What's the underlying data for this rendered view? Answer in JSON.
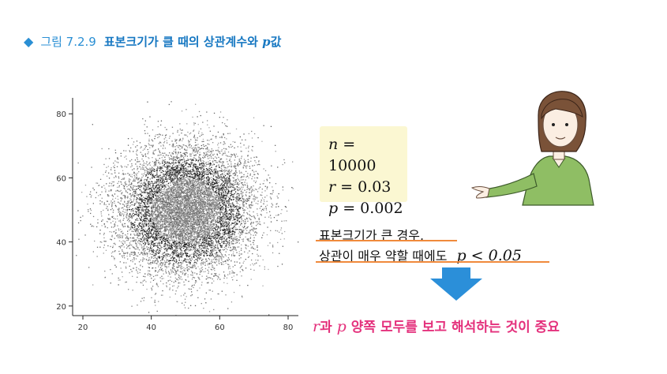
{
  "caption": {
    "label": "그림 7.2.9",
    "title_prefix": "표본크기가 클 때의 상관계수와 ",
    "title_p": "p",
    "title_suffix": "값"
  },
  "stats": {
    "n_label": "n",
    "n_value": " = 10000",
    "r_label": "r",
    "r_value": " = 0.03",
    "p_label": "p",
    "p_value": " = 0.002"
  },
  "note": {
    "line1": "표본크기가 큰 경우,",
    "line2": "상관이 매우 약할 때에도",
    "p_expr": "p < 0.05"
  },
  "conclusion": {
    "r": "r",
    "part1": "과 ",
    "p": "p",
    "part2": " 양쪽 모두를 보고 해석하는 것이 중요"
  },
  "colors": {
    "accent_blue": "#1778c2",
    "arrow_blue": "#2b8fd9",
    "underline_orange": "#f08a3c",
    "conclusion_pink": "#e4317c",
    "box_yellow": "#fbf7d2",
    "shirt_green": "#8fbe64"
  },
  "chart_data": {
    "type": "scatter",
    "title": "",
    "xlabel": "",
    "ylabel": "",
    "xlim": [
      17,
      83
    ],
    "ylim": [
      17,
      84
    ],
    "xticks": [
      20,
      40,
      60,
      80
    ],
    "yticks": [
      20,
      40,
      60,
      80
    ],
    "n_points": 10000,
    "distribution": {
      "x_mean": 50,
      "y_mean": 50,
      "x_sd": 10,
      "y_sd": 10,
      "r": 0.03
    },
    "grid": false
  }
}
